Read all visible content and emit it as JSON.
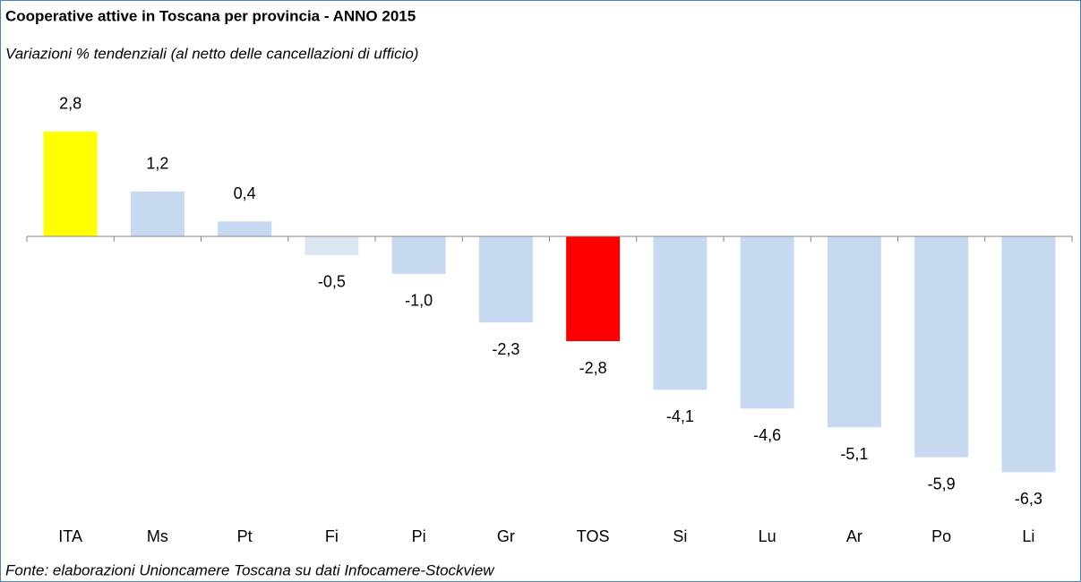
{
  "chart_data": {
    "type": "bar",
    "title": "Cooperative attive in Toscana per provincia - ANNO 2015",
    "subtitle": "Variazioni % tendenziali (al netto delle cancellazioni di ufficio)",
    "source": "Fonte: elaborazioni Unioncamere Toscana su dati Infocamere-Stockview",
    "categories": [
      "ITA",
      "Ms",
      "Pt",
      "Fi",
      "Pi",
      "Gr",
      "TOS",
      "Si",
      "Lu",
      "Ar",
      "Po",
      "Li"
    ],
    "values": [
      2.8,
      1.2,
      0.4,
      -0.5,
      -1.0,
      -2.3,
      -2.8,
      -4.1,
      -4.6,
      -5.1,
      -5.9,
      -6.3
    ],
    "value_labels": [
      "2,8",
      "1,2",
      "0,4",
      "-0,5",
      "-1,0",
      "-2,3",
      "-2,8",
      "-4,1",
      "-4,6",
      "-5,1",
      "-5,9",
      "-6,3"
    ],
    "colors": [
      "#ffff00",
      "#c6d9f1",
      "#c6d9f1",
      "#dce6f2",
      "#c6d9f1",
      "#c6d9f1",
      "#ff0000",
      "#c6d9f1",
      "#c6d9f1",
      "#c6d9f1",
      "#c6d9f1",
      "#c6d9f1"
    ],
    "ylim": [
      -7,
      3.5
    ],
    "grid": false
  }
}
